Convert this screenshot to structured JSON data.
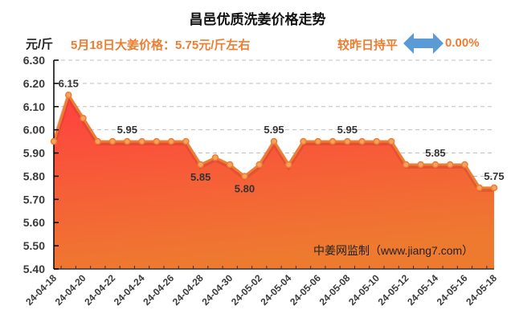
{
  "header": {
    "title": "昌邑优质洗姜价格走势",
    "unit": "元/斤",
    "price_info": "5月18日大姜价格：5.75元/斤左右",
    "compare_text": "较昨日持平",
    "compare_icon": "double-arrow-icon",
    "change_pct": "0.00%"
  },
  "watermark": "中姜网监制（www.jiang7.com）",
  "colors": {
    "accent": "#ed7d31",
    "area_top": "#ff4040",
    "area_bottom": "#ee7a30",
    "arrow": "#5b9bd5",
    "grid": "#bfbfbf"
  },
  "chart_data": {
    "type": "area",
    "title": "昌邑优质洗姜价格走势",
    "xlabel": "",
    "ylabel": "元/斤",
    "ylim": [
      5.4,
      6.3
    ],
    "yticks": [
      "6.30",
      "6.20",
      "6.10",
      "6.00",
      "5.90",
      "5.80",
      "5.70",
      "5.60",
      "5.50",
      "5.40"
    ],
    "xtick_labels": [
      "24-04-18",
      "24-04-20",
      "24-04-22",
      "24-04-24",
      "24-04-26",
      "24-04-28",
      "24-04-30",
      "24-05-02",
      "24-05-04",
      "24-05-06",
      "24-05-08",
      "24-05-10",
      "24-05-12",
      "24-05-14",
      "24-05-16",
      "24-05-18"
    ],
    "x": [
      "24-04-18",
      "24-04-19",
      "24-04-20",
      "24-04-21",
      "24-04-22",
      "24-04-23",
      "24-04-24",
      "24-04-25",
      "24-04-26",
      "24-04-27",
      "24-04-28",
      "24-04-29",
      "24-04-30",
      "24-05-01",
      "24-05-02",
      "24-05-03",
      "24-05-04",
      "24-05-05",
      "24-05-06",
      "24-05-07",
      "24-05-08",
      "24-05-09",
      "24-05-10",
      "24-05-11",
      "24-05-12",
      "24-05-13",
      "24-05-14",
      "24-05-15",
      "24-05-16",
      "24-05-17",
      "24-05-18"
    ],
    "values": [
      5.95,
      6.15,
      6.05,
      5.95,
      5.95,
      5.95,
      5.95,
      5.95,
      5.95,
      5.95,
      5.85,
      5.88,
      5.85,
      5.8,
      5.85,
      5.95,
      5.85,
      5.95,
      5.95,
      5.95,
      5.95,
      5.95,
      5.95,
      5.95,
      5.85,
      5.85,
      5.85,
      5.85,
      5.85,
      5.75,
      5.75
    ],
    "data_labels": [
      {
        "index": 1,
        "text": "6.15",
        "pos": "above"
      },
      {
        "index": 5,
        "text": "5.95",
        "pos": "above"
      },
      {
        "index": 10,
        "text": "5.85",
        "pos": "below"
      },
      {
        "index": 13,
        "text": "5.80",
        "pos": "below"
      },
      {
        "index": 15,
        "text": "5.95",
        "pos": "above"
      },
      {
        "index": 20,
        "text": "5.95",
        "pos": "above"
      },
      {
        "index": 26,
        "text": "5.85",
        "pos": "above"
      },
      {
        "index": 30,
        "text": "5.75",
        "pos": "above"
      }
    ],
    "grid": true,
    "legend": "none"
  }
}
